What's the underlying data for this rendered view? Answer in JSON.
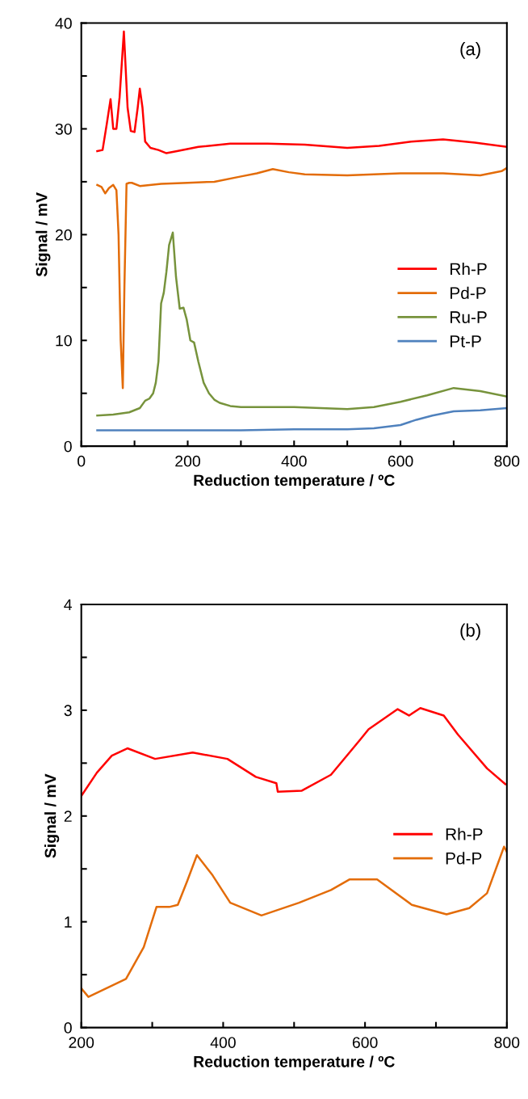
{
  "chart_data": [
    {
      "type": "line",
      "xlabel": "Reduction temperature / ºC",
      "ylabel": "Signal / mV",
      "annotations": [
        "(a)"
      ],
      "xlim": [
        0,
        800
      ],
      "xticks": [
        0,
        {
          "value": 100,
          "label": null
        },
        200,
        {
          "value": 300,
          "label": null
        },
        400,
        {
          "value": 500,
          "label": null
        },
        600,
        {
          "value": 700,
          "label": null
        },
        800
      ],
      "ylim": [
        0,
        40
      ],
      "yticks": [
        0,
        {
          "value": 5,
          "label": null
        },
        10,
        {
          "value": 15,
          "label": null
        },
        20,
        {
          "value": 25,
          "label": null
        },
        30,
        {
          "value": 35,
          "label": null
        },
        40
      ],
      "grid": false,
      "legend": "right",
      "marker": "none",
      "line_style": "solid",
      "series": [
        {
          "name": "Rh-P",
          "color": "#ff0000",
          "x": [
            30,
            40,
            48,
            55,
            60,
            66,
            72,
            80,
            87,
            93,
            100,
            106,
            110,
            115,
            120,
            130,
            145,
            160,
            180,
            220,
            280,
            350,
            420,
            500,
            560,
            620,
            680,
            740,
            800
          ],
          "values": [
            27.9,
            28,
            30.5,
            32.8,
            30,
            30,
            33,
            39.2,
            32,
            29.8,
            29.7,
            32,
            33.8,
            32,
            28.8,
            28.2,
            28,
            27.7,
            27.9,
            28.3,
            28.6,
            28.6,
            28.5,
            28.2,
            28.4,
            28.8,
            29,
            28.7,
            28.3
          ]
        },
        {
          "name": "Pd-P",
          "color": "#e36c09",
          "x": [
            30,
            38,
            45,
            52,
            60,
            66,
            70,
            74,
            78,
            81,
            85,
            90,
            95,
            110,
            150,
            200,
            250,
            300,
            330,
            360,
            390,
            420,
            500,
            600,
            680,
            750,
            790,
            800
          ],
          "values": [
            24.7,
            24.5,
            23.9,
            24.4,
            24.7,
            24.2,
            20,
            10,
            5.5,
            15,
            24.8,
            24.9,
            24.9,
            24.6,
            24.8,
            24.9,
            25,
            25.5,
            25.8,
            26.2,
            25.9,
            25.7,
            25.6,
            25.8,
            25.8,
            25.6,
            26,
            26.3
          ]
        },
        {
          "name": "Ru-P",
          "color": "#77933c",
          "x": [
            30,
            60,
            90,
            110,
            120,
            128,
            135,
            140,
            145,
            150,
            155,
            160,
            165,
            172,
            178,
            185,
            192,
            198,
            205,
            212,
            220,
            230,
            240,
            250,
            260,
            280,
            300,
            350,
            400,
            450,
            500,
            550,
            600,
            650,
            700,
            750,
            800
          ],
          "values": [
            2.9,
            3,
            3.2,
            3.6,
            4.3,
            4.5,
            5,
            6,
            8,
            13.5,
            14.5,
            16.5,
            19,
            20.2,
            16,
            13,
            13.1,
            12,
            10,
            9.8,
            8,
            6,
            5,
            4.4,
            4.1,
            3.8,
            3.7,
            3.7,
            3.7,
            3.6,
            3.5,
            3.7,
            4.2,
            4.8,
            5.5,
            5.2,
            4.7
          ]
        },
        {
          "name": "Pt-P",
          "color": "#4f81bd",
          "x": [
            30,
            100,
            200,
            300,
            400,
            500,
            550,
            600,
            630,
            660,
            700,
            750,
            800
          ],
          "values": [
            1.5,
            1.5,
            1.5,
            1.5,
            1.6,
            1.6,
            1.7,
            2,
            2.5,
            2.9,
            3.3,
            3.4,
            3.6
          ]
        }
      ]
    },
    {
      "type": "line",
      "xlabel": "Reduction temperature / ºC",
      "ylabel": "Signal / mV",
      "annotations": [
        "(b)"
      ],
      "xlim": [
        200,
        800
      ],
      "xticks": [
        200,
        {
          "value": 300,
          "label": null
        },
        400,
        {
          "value": 500,
          "label": null
        },
        600,
        {
          "value": 700,
          "label": null
        },
        800
      ],
      "ylim": [
        0,
        4
      ],
      "yticks": [
        0,
        {
          "value": 0.5,
          "label": null
        },
        1,
        {
          "value": 1.5,
          "label": null
        },
        2,
        {
          "value": 2.5,
          "label": null
        },
        3,
        {
          "value": 3.5,
          "label": null
        },
        4
      ],
      "grid": false,
      "legend": "right",
      "marker": "none",
      "line_style": "solid",
      "series": [
        {
          "name": "Rh-P",
          "color": "#ff0000",
          "x": [
            200,
            222,
            243,
            265,
            304,
            357,
            406,
            446,
            475,
            477,
            511,
            552,
            593,
            605,
            646,
            662,
            678,
            711,
            731,
            772,
            798,
            800
          ],
          "values": [
            2.19,
            2.41,
            2.57,
            2.64,
            2.54,
            2.6,
            2.54,
            2.37,
            2.31,
            2.23,
            2.24,
            2.39,
            2.72,
            2.82,
            3.01,
            2.95,
            3.02,
            2.95,
            2.77,
            2.45,
            2.3,
            2.3
          ]
        },
        {
          "name": "Pd-P",
          "color": "#e36c09",
          "x": [
            200,
            210,
            263,
            288,
            306,
            324,
            336,
            349,
            363,
            385,
            410,
            454,
            507,
            552,
            578,
            617,
            666,
            715,
            747,
            772,
            796,
            800
          ],
          "values": [
            0.37,
            0.29,
            0.46,
            0.76,
            1.14,
            1.14,
            1.16,
            1.38,
            1.63,
            1.44,
            1.18,
            1.06,
            1.18,
            1.3,
            1.4,
            1.4,
            1.16,
            1.07,
            1.13,
            1.27,
            1.71,
            1.66
          ]
        }
      ]
    }
  ]
}
